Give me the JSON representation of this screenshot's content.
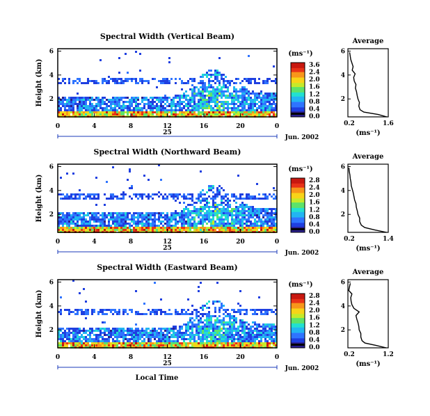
{
  "colors": {
    "scale": [
      "#2a1f8f",
      "#1f3fe0",
      "#2f74ff",
      "#22b5f2",
      "#22e0d0",
      "#5de36a",
      "#c6ea2a",
      "#f8d418",
      "#f8961a",
      "#e83318",
      "#c81810"
    ],
    "dark_band": "#000000",
    "axis": "#000000",
    "background": "#ffffff"
  },
  "chart_data": [
    {
      "type": "heatmap",
      "title": "Spectral Width (Vertical Beam)",
      "ylabel": "Height (km)",
      "yticks": [
        "2",
        "4",
        "6"
      ],
      "xticks": [
        "0",
        "4",
        "8",
        "12",
        "16",
        "20",
        "0"
      ],
      "date_label": "25",
      "date_suffix": "Jun. 2002",
      "colorbar": {
        "unit": "(ms⁻¹)",
        "ticks": [
          "3.6",
          "2.4",
          "2.0",
          "1.6",
          "1.2",
          "0.8",
          "0.4",
          "0.0"
        ]
      },
      "x_range": [
        0,
        24
      ],
      "y_range": [
        0.5,
        6.2
      ],
      "profile": {
        "title": "Average",
        "xlabel": "(ms⁻¹)",
        "xticks": [
          "0.2",
          "1.6"
        ],
        "yticks": [
          "2",
          "4",
          "6"
        ],
        "x_range": [
          0.2,
          1.6
        ],
        "heights": [
          0.5,
          0.7,
          0.9,
          1.1,
          1.4,
          1.7,
          2.0,
          2.3,
          2.6,
          2.9,
          3.2,
          3.5,
          3.8,
          4.1,
          4.4,
          4.7,
          5.0,
          5.3,
          5.6,
          5.9
        ],
        "values": [
          1.55,
          1.25,
          0.75,
          0.62,
          0.58,
          0.6,
          0.55,
          0.52,
          0.5,
          0.46,
          0.48,
          0.42,
          0.4,
          0.45,
          0.35,
          0.38,
          0.34,
          0.3,
          0.28,
          0.26
        ]
      }
    },
    {
      "type": "heatmap",
      "title": "Spectral Width (Northward Beam)",
      "ylabel": "Height (km)",
      "yticks": [
        "2",
        "4",
        "6"
      ],
      "xticks": [
        "0",
        "4",
        "8",
        "12",
        "16",
        "20",
        "0"
      ],
      "date_label": "25",
      "date_suffix": "Jun. 2002",
      "colorbar": {
        "unit": "(ms⁻¹)",
        "ticks": [
          "2.8",
          "2.4",
          "2.0",
          "1.6",
          "1.2",
          "0.8",
          "0.4",
          "0.0"
        ]
      },
      "x_range": [
        0,
        24
      ],
      "y_range": [
        0.5,
        6.2
      ],
      "profile": {
        "title": "Average",
        "xlabel": "(ms⁻¹)",
        "xticks": [
          "0.2",
          "1.4"
        ],
        "yticks": [
          "2",
          "4",
          "6"
        ],
        "x_range": [
          0.2,
          1.4
        ],
        "heights": [
          0.5,
          0.7,
          0.9,
          1.1,
          1.4,
          1.7,
          2.0,
          2.3,
          2.6,
          2.9,
          3.2,
          3.5,
          3.8,
          4.1,
          4.4,
          4.7,
          5.0,
          5.3,
          5.6,
          5.9
        ],
        "values": [
          1.35,
          1.0,
          0.7,
          0.6,
          0.55,
          0.55,
          0.5,
          0.48,
          0.45,
          0.44,
          0.4,
          0.38,
          0.36,
          0.33,
          0.3,
          0.29,
          0.27,
          0.26,
          0.24,
          0.23
        ]
      }
    },
    {
      "type": "heatmap",
      "title": "Spectral Width (Eastward Beam)",
      "ylabel": "Height (km)",
      "yticks": [
        "2",
        "4",
        "6"
      ],
      "xticks": [
        "0",
        "4",
        "8",
        "12",
        "16",
        "20",
        "0"
      ],
      "date_label": "25",
      "date_suffix": "Jun. 2002",
      "xlabel": "Local Time",
      "colorbar": {
        "unit": "(ms⁻¹)",
        "ticks": [
          "2.8",
          "2.4",
          "2.0",
          "1.6",
          "1.2",
          "0.8",
          "0.4",
          "0.0"
        ]
      },
      "x_range": [
        0,
        24
      ],
      "y_range": [
        0.5,
        6.2
      ],
      "profile": {
        "title": "Average",
        "xlabel": "(ms⁻¹)",
        "xticks": [
          "0.2",
          "1.2"
        ],
        "yticks": [
          "2",
          "4",
          "6"
        ],
        "x_range": [
          0.2,
          1.2
        ],
        "heights": [
          0.5,
          0.7,
          0.9,
          1.1,
          1.4,
          1.7,
          2.0,
          2.3,
          2.6,
          2.9,
          3.2,
          3.5,
          3.8,
          4.1,
          4.4,
          4.7,
          5.0,
          5.3,
          5.6,
          5.9
        ],
        "values": [
          1.15,
          0.9,
          0.62,
          0.55,
          0.52,
          0.52,
          0.48,
          0.47,
          0.45,
          0.42,
          0.4,
          0.48,
          0.35,
          0.3,
          0.28,
          0.27,
          0.3,
          0.22,
          0.24,
          0.26
        ]
      }
    }
  ]
}
